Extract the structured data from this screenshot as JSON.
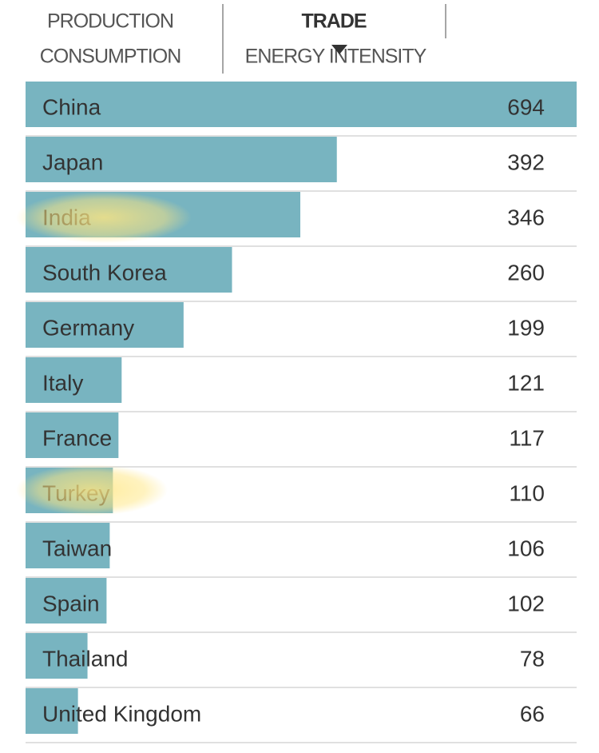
{
  "tabs": {
    "production": "PRODUCTION",
    "consumption": "CONSUMPTION",
    "trade": "TRADE",
    "energy_intensity": "ENERGY INTENSITY"
  },
  "chart_data": {
    "type": "bar",
    "orientation": "horizontal",
    "color": "#78b4c0",
    "categories": [
      "China",
      "Japan",
      "India",
      "South Korea",
      "Germany",
      "Italy",
      "France",
      "Turkey",
      "Taiwan",
      "Spain",
      "Thailand",
      "United Kingdom"
    ],
    "values": [
      694,
      392,
      346,
      260,
      199,
      121,
      117,
      110,
      106,
      102,
      78,
      66
    ]
  }
}
